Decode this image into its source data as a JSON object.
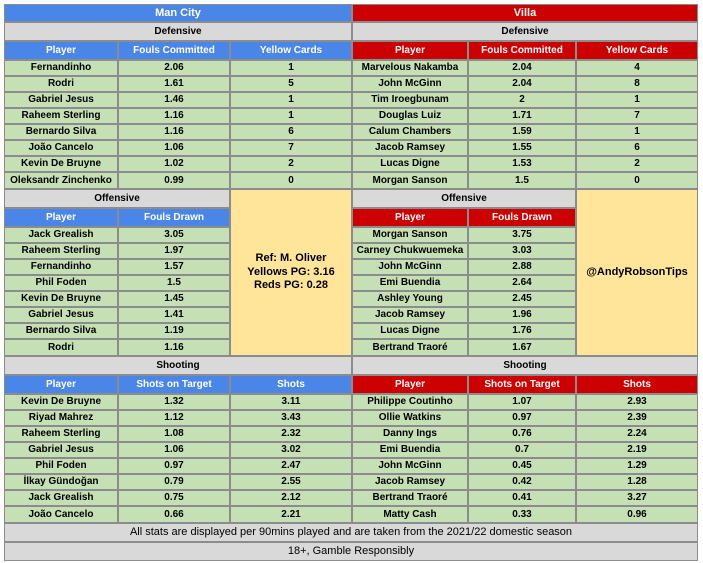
{
  "teams": {
    "home": {
      "name": "Man City"
    },
    "away": {
      "name": "Villa"
    }
  },
  "sections": {
    "defensive": "Defensive",
    "offensive": "Offensive",
    "shooting": "Shooting"
  },
  "columns": {
    "player": "Player",
    "fouls_committed": "Fouls Committed",
    "yellow_cards": "Yellow Cards",
    "fouls_drawn": "Fouls Drawn",
    "shots_on_target": "Shots on Target",
    "shots": "Shots"
  },
  "defensive": {
    "home": [
      [
        "Fernandinho",
        "2.06",
        "1"
      ],
      [
        "Rodri",
        "1.61",
        "5"
      ],
      [
        "Gabriel Jesus",
        "1.46",
        "1"
      ],
      [
        "Raheem Sterling",
        "1.16",
        "1"
      ],
      [
        "Bernardo Silva",
        "1.16",
        "6"
      ],
      [
        "João Cancelo",
        "1.06",
        "7"
      ],
      [
        "Kevin De Bruyne",
        "1.02",
        "2"
      ],
      [
        "Oleksandr Zinchenko",
        "0.99",
        "0"
      ]
    ],
    "away": [
      [
        "Marvelous Nakamba",
        "2.04",
        "4"
      ],
      [
        "John McGinn",
        "2.04",
        "8"
      ],
      [
        "Tim Iroegbunam",
        "2",
        "1"
      ],
      [
        "Douglas Luiz",
        "1.71",
        "7"
      ],
      [
        "Calum Chambers",
        "1.59",
        "1"
      ],
      [
        "Jacob Ramsey",
        "1.55",
        "6"
      ],
      [
        "Lucas Digne",
        "1.53",
        "2"
      ],
      [
        "Morgan Sanson",
        "1.5",
        "0"
      ]
    ]
  },
  "offensive": {
    "home": [
      [
        "Jack Grealish",
        "3.05"
      ],
      [
        "Raheem Sterling",
        "1.97"
      ],
      [
        "Fernandinho",
        "1.57"
      ],
      [
        "Phil Foden",
        "1.5"
      ],
      [
        "Kevin De Bruyne",
        "1.45"
      ],
      [
        "Gabriel Jesus",
        "1.41"
      ],
      [
        "Bernardo Silva",
        "1.19"
      ],
      [
        "Rodri",
        "1.16"
      ]
    ],
    "away": [
      [
        "Morgan Sanson",
        "3.75"
      ],
      [
        "Carney Chukwuemeka",
        "3.03"
      ],
      [
        "John McGinn",
        "2.88"
      ],
      [
        "Emi Buendia",
        "2.64"
      ],
      [
        "Ashley Young",
        "2.45"
      ],
      [
        "Jacob Ramsey",
        "1.96"
      ],
      [
        "Lucas Digne",
        "1.76"
      ],
      [
        "Bertrand Traoré",
        "1.67"
      ]
    ]
  },
  "shooting": {
    "home": [
      [
        "Kevin De Bruyne",
        "1.32",
        "3.11"
      ],
      [
        "Riyad Mahrez",
        "1.12",
        "3.43"
      ],
      [
        "Raheem Sterling",
        "1.08",
        "2.32"
      ],
      [
        "Gabriel Jesus",
        "1.06",
        "3.02"
      ],
      [
        "Phil Foden",
        "0.97",
        "2.47"
      ],
      [
        "İlkay Gündoğan",
        "0.79",
        "2.55"
      ],
      [
        "Jack Grealish",
        "0.75",
        "2.12"
      ],
      [
        "João Cancelo",
        "0.66",
        "2.21"
      ]
    ],
    "away": [
      [
        "Philippe Coutinho",
        "1.07",
        "2.93"
      ],
      [
        "Ollie Watkins",
        "0.97",
        "2.39"
      ],
      [
        "Danny Ings",
        "0.76",
        "2.24"
      ],
      [
        "Emi Buendia",
        "0.7",
        "2.19"
      ],
      [
        "John McGinn",
        "0.45",
        "1.29"
      ],
      [
        "Jacob Ramsey",
        "0.42",
        "1.28"
      ],
      [
        "Bertrand Traoré",
        "0.41",
        "3.27"
      ],
      [
        "Matty Cash",
        "0.33",
        "0.96"
      ]
    ]
  },
  "referee": {
    "name": "Ref: M. Oliver",
    "yellows": "Yellows PG: 3.16",
    "reds": "Reds PG: 0.28"
  },
  "handle": "@AndyRobsonTips",
  "footer": {
    "stats_note": "All stats are displayed per 90mins played and are taken from the 2021/22 domestic season",
    "disclaimer": "18+, Gamble Responsibly"
  },
  "colors": {
    "home": "#4a86e8",
    "away": "#cc0000",
    "rows": "#c5e0b4",
    "sections": "#d9d9d9",
    "note": "#ffe599"
  }
}
